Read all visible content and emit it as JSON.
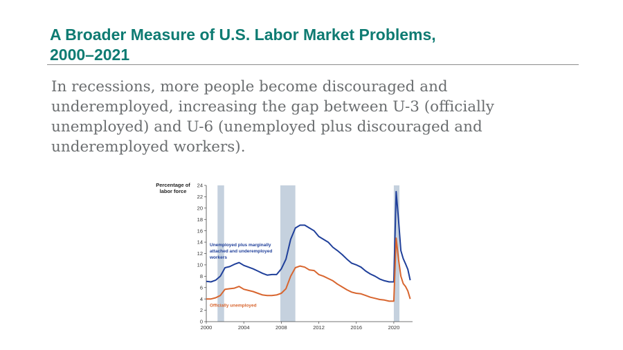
{
  "slide": {
    "title_line1": "A Broader Measure of U.S. Labor Market Problems,",
    "title_line2": "2000–2021",
    "body_line1": "In recessions, more people become discouraged and",
    "body_line2": "underemployed, increasing the gap between U-3 (officially",
    "body_line3": "unemployed) and  U-6 (unemployed plus discouraged and",
    "body_line4": "underemployed workers)."
  },
  "colors": {
    "title": "#0e7b72",
    "u6": "#1f3f9a",
    "u3": "#d8652e",
    "recession": "#c5d1de"
  },
  "chart_data": {
    "type": "line",
    "ylabel_line1": "Percentage of",
    "ylabel_line2": "labor force",
    "ylim": [
      0,
      24
    ],
    "yticks": [
      0,
      2,
      4,
      6,
      8,
      10,
      12,
      14,
      16,
      18,
      20,
      22,
      24
    ],
    "xlim": [
      2000,
      2022
    ],
    "xticks": [
      2000,
      2004,
      2008,
      2012,
      2016,
      2020
    ],
    "recessions": [
      [
        2001.2,
        2001.9
      ],
      [
        2007.9,
        2009.5
      ],
      [
        2020.0,
        2020.6
      ]
    ],
    "series": [
      {
        "name": "Unemployed plus marginally attached and underemployed workers",
        "label_lines": [
          "Unemployed plus marginally",
          "attached and underemployed",
          "workers"
        ],
        "x": [
          2000,
          2000.5,
          2001,
          2001.5,
          2002,
          2002.5,
          2003,
          2003.5,
          2004,
          2004.5,
          2005,
          2005.5,
          2006,
          2006.5,
          2007,
          2007.5,
          2008,
          2008.5,
          2009,
          2009.5,
          2010,
          2010.5,
          2011,
          2011.5,
          2012,
          2012.5,
          2013,
          2013.5,
          2014,
          2014.5,
          2015,
          2015.5,
          2016,
          2016.5,
          2017,
          2017.5,
          2018,
          2018.5,
          2019,
          2019.5,
          2020,
          2020.25,
          2020.35,
          2020.5,
          2020.75,
          2021,
          2021.25,
          2021.5,
          2021.75
        ],
        "values": [
          7.1,
          7.0,
          7.3,
          8.0,
          9.5,
          9.7,
          10.1,
          10.4,
          9.9,
          9.6,
          9.3,
          8.9,
          8.5,
          8.2,
          8.3,
          8.3,
          9.3,
          11.0,
          14.5,
          16.5,
          17.0,
          17.0,
          16.5,
          16.0,
          15.0,
          14.5,
          14.0,
          13.1,
          12.5,
          11.8,
          11.0,
          10.3,
          10.0,
          9.6,
          8.9,
          8.4,
          8.0,
          7.5,
          7.2,
          7.0,
          7.0,
          22.9,
          21.0,
          18.0,
          12.5,
          11.1,
          10.2,
          9.2,
          7.3
        ]
      },
      {
        "name": "Officially unemployed",
        "label_lines": [
          "Officially unemployed"
        ],
        "x": [
          2000,
          2000.5,
          2001,
          2001.5,
          2002,
          2002.5,
          2003,
          2003.5,
          2004,
          2004.5,
          2005,
          2005.5,
          2006,
          2006.5,
          2007,
          2007.5,
          2008,
          2008.5,
          2009,
          2009.5,
          2010,
          2010.5,
          2011,
          2011.5,
          2012,
          2012.5,
          2013,
          2013.5,
          2014,
          2014.5,
          2015,
          2015.5,
          2016,
          2016.5,
          2017,
          2017.5,
          2018,
          2018.5,
          2019,
          2019.5,
          2020,
          2020.25,
          2020.35,
          2020.5,
          2020.75,
          2021,
          2021.25,
          2021.5,
          2021.75
        ],
        "values": [
          4.0,
          4.0,
          4.2,
          4.6,
          5.7,
          5.8,
          5.9,
          6.2,
          5.7,
          5.5,
          5.3,
          5.0,
          4.7,
          4.6,
          4.6,
          4.7,
          5.0,
          5.8,
          8.0,
          9.5,
          9.8,
          9.6,
          9.1,
          9.0,
          8.3,
          8.0,
          7.6,
          7.2,
          6.6,
          6.1,
          5.6,
          5.2,
          5.0,
          4.9,
          4.6,
          4.3,
          4.1,
          3.9,
          3.8,
          3.6,
          3.6,
          14.7,
          13.3,
          11.0,
          8.0,
          6.7,
          6.2,
          5.4,
          4.0
        ]
      }
    ]
  }
}
